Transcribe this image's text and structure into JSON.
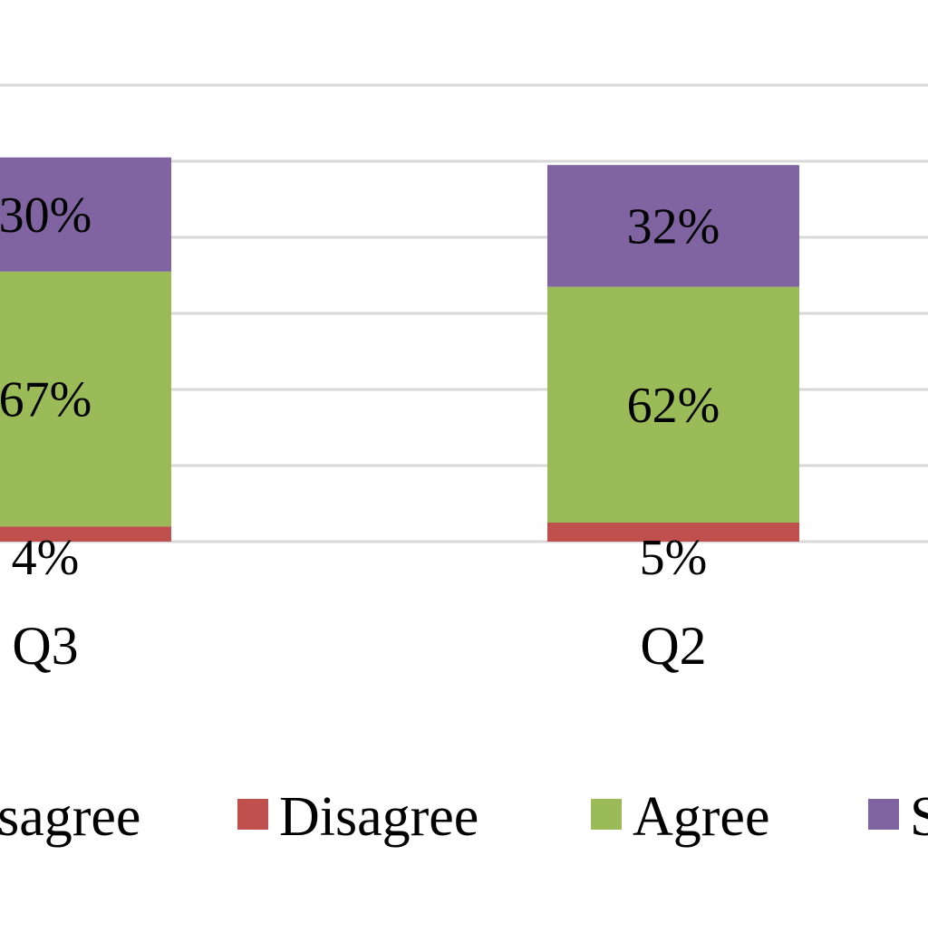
{
  "chart_data": {
    "type": "bar",
    "stacked": true,
    "categories": [
      "Q3",
      "Q2"
    ],
    "series": [
      {
        "name": "Disagree",
        "values": [
          4,
          5
        ],
        "labels": [
          "4%",
          "5%"
        ],
        "color": "#c0504d"
      },
      {
        "name": "Agree",
        "values": [
          67,
          62
        ],
        "labels": [
          "67%",
          "62%"
        ],
        "color": "#9bbb59"
      },
      {
        "name": "Strongly Agree",
        "values": [
          30,
          32
        ],
        "labels": [
          "30%",
          "32%"
        ],
        "color": "#8064a2"
      }
    ],
    "legend": {
      "position": "bottom",
      "entries": [
        {
          "label": "Strongly Disagree",
          "color": "#4f81bd"
        },
        {
          "label": "Disagree",
          "color": "#c0504d"
        },
        {
          "label": "Agree",
          "color": "#9bbb59"
        },
        {
          "label": "Strongly Agree",
          "color": "#8064a2"
        }
      ]
    },
    "ylim": [
      0,
      120
    ],
    "grid": true,
    "gridline_color": "#d9d9d9"
  }
}
